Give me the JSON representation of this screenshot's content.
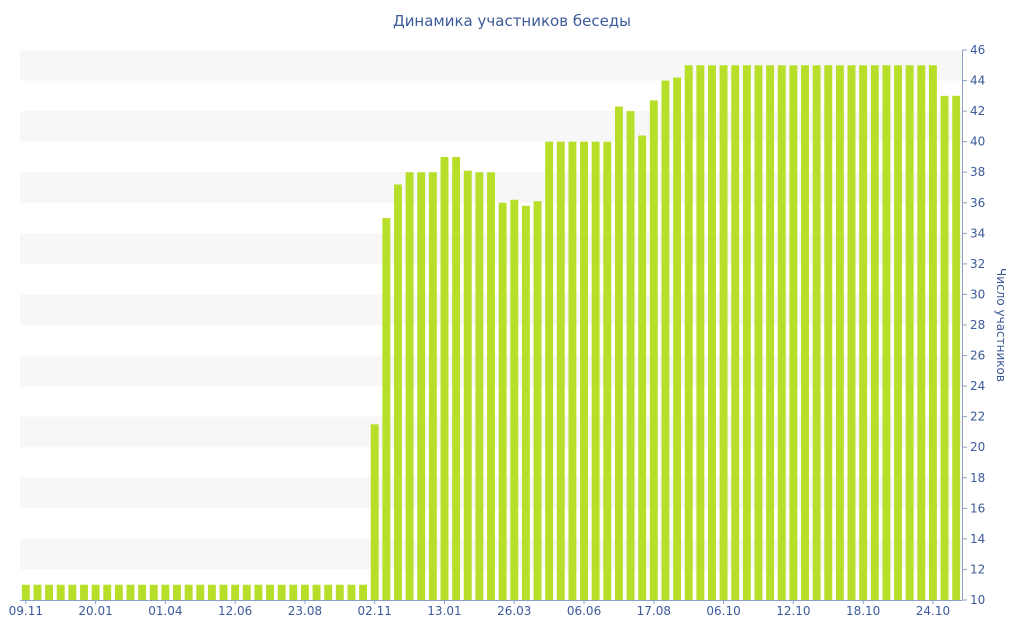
{
  "chart_data": {
    "type": "bar",
    "title": "Динамика участников беседы",
    "xlabel": "",
    "ylabel": "Число участников",
    "ylim": [
      10,
      46
    ],
    "y_ticks": [
      10,
      12,
      14,
      16,
      18,
      20,
      22,
      24,
      26,
      28,
      30,
      32,
      34,
      36,
      38,
      40,
      42,
      44,
      46
    ],
    "x_tick_labels": [
      "09.11",
      "20.01",
      "01.04",
      "12.06",
      "23.08",
      "02.11",
      "13.01",
      "26.03",
      "06.06",
      "17.08",
      "06.10",
      "12.10",
      "18.10",
      "24.10"
    ],
    "x_tick_positions": [
      0,
      6,
      12,
      18,
      24,
      30,
      36,
      42,
      48,
      54,
      60,
      66,
      72,
      78
    ],
    "y_axis_position": "right",
    "horizontal_bands": true,
    "grid": false,
    "legend": "none",
    "values": [
      11,
      11,
      11,
      11,
      11,
      11,
      11,
      11,
      11,
      11,
      11,
      11,
      11,
      11,
      11,
      11,
      11,
      11,
      11,
      11,
      11,
      11,
      11,
      11,
      11,
      11,
      11,
      11,
      11,
      11,
      21.5,
      35,
      37.2,
      38,
      38,
      38,
      39,
      39,
      38.1,
      38,
      38,
      36,
      36.2,
      35.8,
      36.1,
      40,
      40,
      40,
      40,
      40,
      40,
      42.3,
      42,
      40.4,
      42.7,
      44,
      44.2,
      45,
      45,
      45,
      45,
      45,
      45,
      45,
      45,
      45,
      45,
      45,
      45,
      45,
      45,
      45,
      45,
      45,
      45,
      45,
      45,
      45,
      45,
      43,
      43
    ]
  },
  "colors": {
    "bar": "#b7df2a",
    "band": "#f7f7f7",
    "axis_text": "#3c5a99",
    "axis_line": "#8aa0c8"
  }
}
